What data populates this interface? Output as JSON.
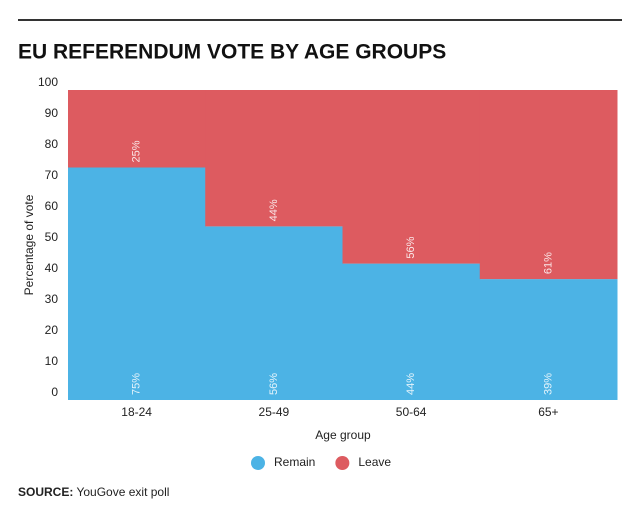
{
  "chart_data": {
    "type": "bar",
    "stacked": true,
    "title": "EU REFERENDUM VOTE BY AGE GROUPS",
    "x_label": "Age group",
    "y_label": "Percentage of vote",
    "categories": [
      "18-24",
      "25-49",
      "50-64",
      "65+"
    ],
    "series": [
      {
        "name": "Remain",
        "color": "#4cb3e5",
        "values": [
          75,
          56,
          44,
          39
        ],
        "value_labels": [
          "75%",
          "56%",
          "44%",
          "39%"
        ]
      },
      {
        "name": "Leave",
        "color": "#dd5b60",
        "values": [
          25,
          44,
          56,
          61
        ],
        "value_labels": [
          "25%",
          "44%",
          "56%",
          "61%"
        ]
      }
    ],
    "ylim": [
      0,
      100
    ],
    "yticks": [
      0,
      10,
      20,
      30,
      40,
      50,
      60,
      70,
      80,
      90,
      100
    ],
    "grid": false,
    "legend": "bottom",
    "source_label": "SOURCE:",
    "source": "YouGove exit poll"
  }
}
